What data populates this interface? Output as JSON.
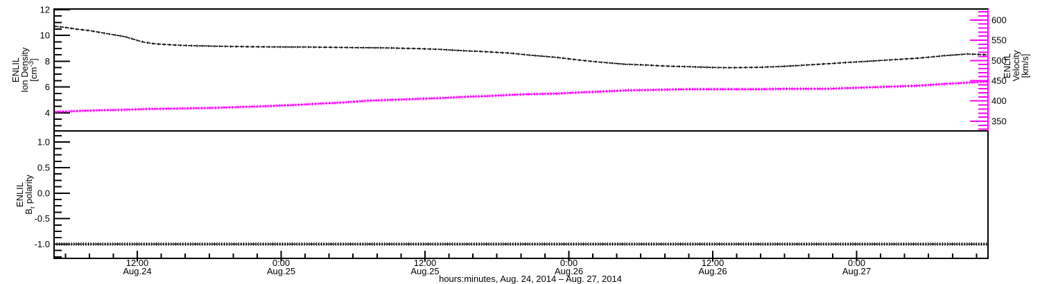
{
  "figure": {
    "left_axis_top": {
      "line1": "ENLIL",
      "line2": "Ion Density",
      "units": {
        "pre": "[cm",
        "sup": "-3",
        "post": "]"
      }
    },
    "right_axis_top": {
      "line1": "ENLIL",
      "line2": "Velocity",
      "line3": "[km/s]"
    },
    "left_axis_bottom": {
      "line1": "ENLIL",
      "line2": {
        "pre": "B",
        "sub": "r",
        "post": " polarity"
      }
    },
    "x_axis_title": "hours:minutes, Aug. 24, 2014 – Aug. 27, 2014",
    "colors": {
      "density": "#000000",
      "velocity": "#ff00ff",
      "polarity": "#000000",
      "frame": "#000000",
      "background": "#ffffff"
    }
  },
  "chart_data": [
    {
      "type": "line",
      "panel": "top",
      "x_unit": "hours since Aug. 24, 2014 00:00",
      "xlim": [
        5.06,
        82.96
      ],
      "x_minor_step": 2,
      "x_minor_from": 6,
      "x_minor_to": 82,
      "x_ticks": [
        {
          "t": 12,
          "time": "12:00",
          "date": "Aug.24"
        },
        {
          "t": 24,
          "time": "0:00",
          "date": "Aug.25"
        },
        {
          "t": 36,
          "time": "12:00",
          "date": "Aug.25"
        },
        {
          "t": 48,
          "time": "0:00",
          "date": "Aug.26"
        },
        {
          "t": 60,
          "time": "12:00",
          "date": "Aug.26"
        },
        {
          "t": 72,
          "time": "0:00",
          "date": "Aug.27"
        }
      ],
      "series": [
        {
          "name": "ENLIL Ion Density",
          "units": "cm^-3",
          "color": "#000000",
          "axis": "left",
          "ylim": [
            2.6,
            12.05
          ],
          "yticks": [
            4,
            6,
            8,
            10,
            12
          ],
          "ytick_labels": [
            "4",
            "6",
            "8",
            "10",
            "12"
          ],
          "y_minor_from": 3.0,
          "y_minor_to": 12.0,
          "y_minor_step": 0.5,
          "points": [
            [
              5.1,
              10.71
            ],
            [
              6,
              10.62
            ],
            [
              7,
              10.48
            ],
            [
              8,
              10.38
            ],
            [
              9,
              10.22
            ],
            [
              10,
              10.06
            ],
            [
              11,
              9.9
            ],
            [
              12,
              9.62
            ],
            [
              12.6,
              9.47
            ],
            [
              13.4,
              9.36
            ],
            [
              14.1,
              9.31
            ],
            [
              15.5,
              9.24
            ],
            [
              17,
              9.2
            ],
            [
              18.4,
              9.17
            ],
            [
              20,
              9.14
            ],
            [
              22.2,
              9.12
            ],
            [
              24,
              9.11
            ],
            [
              26.1,
              9.1
            ],
            [
              28,
              9.08
            ],
            [
              30,
              9.06
            ],
            [
              31.5,
              9.05
            ],
            [
              33,
              9.03
            ],
            [
              35.4,
              8.98
            ],
            [
              37,
              8.93
            ],
            [
              39.2,
              8.82
            ],
            [
              41,
              8.74
            ],
            [
              43.1,
              8.63
            ],
            [
              45,
              8.45
            ],
            [
              46.9,
              8.31
            ],
            [
              48.8,
              8.1
            ],
            [
              50.7,
              7.92
            ],
            [
              52.7,
              7.77
            ],
            [
              54.6,
              7.7
            ],
            [
              56,
              7.63
            ],
            [
              58.1,
              7.57
            ],
            [
              60,
              7.52
            ],
            [
              61,
              7.51
            ],
            [
              62,
              7.51
            ],
            [
              63.9,
              7.53
            ],
            [
              65.8,
              7.6
            ],
            [
              67.7,
              7.7
            ],
            [
              69.6,
              7.81
            ],
            [
              71.5,
              7.92
            ],
            [
              73.5,
              8.03
            ],
            [
              75.4,
              8.14
            ],
            [
              77.3,
              8.25
            ],
            [
              79.3,
              8.43
            ],
            [
              80.5,
              8.51
            ],
            [
              81.2,
              8.56
            ],
            [
              82,
              8.54
            ],
            [
              82.9,
              8.5
            ]
          ]
        },
        {
          "name": "ENLIL Velocity",
          "units": "km/s",
          "color": "#ff00ff",
          "axis": "right",
          "ylim": [
            326,
            627
          ],
          "yticks": [
            350,
            400,
            450,
            500,
            550,
            600
          ],
          "ytick_labels": [
            "350",
            "400",
            "450",
            "500",
            "550",
            "600"
          ],
          "y_minor_from": 330,
          "y_minor_to": 620,
          "y_minor_step": 10,
          "points": [
            [
              5.1,
              373
            ],
            [
              7,
              375
            ],
            [
              8.8,
              377
            ],
            [
              10.7,
              378
            ],
            [
              12.6,
              380
            ],
            [
              15,
              381
            ],
            [
              18.4,
              383
            ],
            [
              20.5,
              385
            ],
            [
              22.7,
              387
            ],
            [
              25,
              390
            ],
            [
              27,
              393
            ],
            [
              29,
              396
            ],
            [
              31.5,
              401
            ],
            [
              33.5,
              403
            ],
            [
              35.4,
              405
            ],
            [
              37.3,
              407
            ],
            [
              39.2,
              410
            ],
            [
              41.2,
              412
            ],
            [
              43.1,
              415
            ],
            [
              45,
              417
            ],
            [
              46.9,
              418
            ],
            [
              48.8,
              421
            ],
            [
              50.7,
              423
            ],
            [
              52.7,
              426
            ],
            [
              54.6,
              427
            ],
            [
              56.2,
              428
            ],
            [
              58.1,
              429
            ],
            [
              60,
              429
            ],
            [
              62,
              429
            ],
            [
              63.9,
              429
            ],
            [
              66,
              430
            ],
            [
              68,
              430
            ],
            [
              69.6,
              430
            ],
            [
              71.5,
              432
            ],
            [
              73.5,
              434
            ],
            [
              75.4,
              436
            ],
            [
              77.3,
              438
            ],
            [
              79.3,
              442
            ],
            [
              81.2,
              445
            ],
            [
              82.9,
              448
            ]
          ]
        }
      ]
    },
    {
      "type": "line",
      "panel": "bottom",
      "x_unit": "hours since Aug. 24, 2014 00:00",
      "xlim": [
        5.06,
        82.96
      ],
      "series": [
        {
          "name": "ENLIL Br polarity",
          "units": "",
          "color": "#000000",
          "axis": "left",
          "ylim": [
            -1.28,
            1.22
          ],
          "yticks": [
            -1.0,
            -0.5,
            0.0,
            0.5,
            1.0
          ],
          "ytick_labels": [
            "-1.0",
            "-0.5",
            "0.0",
            "0.5",
            "1.0"
          ],
          "y_minor_from": -1.25,
          "y_minor_to": 1.125,
          "y_minor_step": 0.125,
          "points": [
            [
              5.06,
              -1.0
            ],
            [
              82.96,
              -1.0
            ]
          ]
        }
      ]
    }
  ]
}
